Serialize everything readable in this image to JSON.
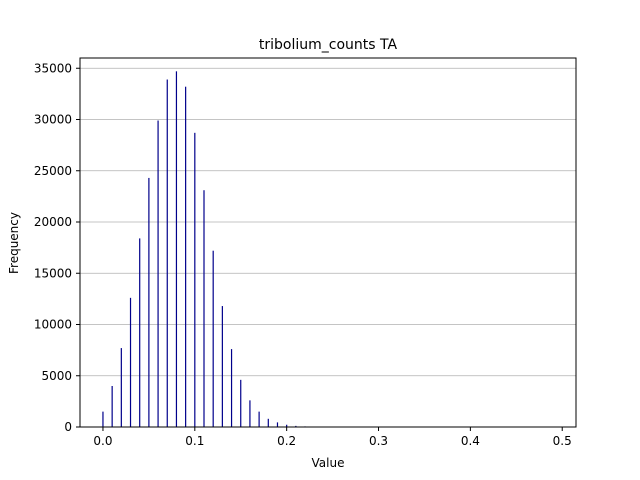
{
  "chart_data": {
    "type": "bar",
    "title": "tribolium_counts TA",
    "xlabel": "Value",
    "ylabel": "Frequency",
    "xlim": [
      -0.025,
      0.515
    ],
    "ylim": [
      0,
      36000
    ],
    "x_ticks": [
      0.0,
      0.1,
      0.2,
      0.3,
      0.4,
      0.5
    ],
    "x_tick_labels": [
      "0.0",
      "0.1",
      "0.2",
      "0.3",
      "0.4",
      "0.5"
    ],
    "y_ticks": [
      0,
      5000,
      10000,
      15000,
      20000,
      25000,
      30000,
      35000
    ],
    "y_tick_labels": [
      "0",
      "5000",
      "10000",
      "15000",
      "20000",
      "25000",
      "30000",
      "35000"
    ],
    "grid": "y",
    "legend": "none",
    "bar_color": "#00008b",
    "grid_color": "#b0b0b0",
    "x": [
      0.0,
      0.01,
      0.02,
      0.03,
      0.04,
      0.05,
      0.06,
      0.07,
      0.08,
      0.09,
      0.1,
      0.11,
      0.12,
      0.13,
      0.14,
      0.15,
      0.16,
      0.17,
      0.18,
      0.19,
      0.2,
      0.21,
      0.22,
      0.23
    ],
    "values": [
      1500,
      4000,
      7700,
      12600,
      18400,
      24300,
      29900,
      33900,
      34700,
      33200,
      28700,
      23100,
      17200,
      11800,
      7600,
      4600,
      2600,
      1500,
      800,
      450,
      220,
      110,
      60,
      30
    ]
  }
}
